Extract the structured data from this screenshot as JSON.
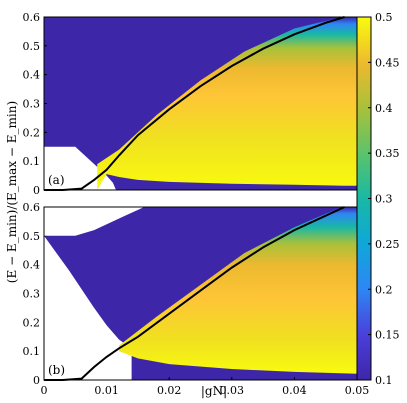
{
  "chart_data": [
    {
      "type": "heatmap",
      "panel_label": "(a)",
      "xlim": [
        0,
        0.05
      ],
      "ylim": [
        0,
        0.6
      ],
      "yticks": [
        "0",
        "0.1",
        "0.2",
        "0.3",
        "0.4",
        "0.5",
        "0.6"
      ],
      "xticks": [
        "0",
        "0.01",
        "0.02",
        "0.03",
        "0.04",
        "0.05"
      ],
      "background_color": "#3e26a8",
      "upper_boundary": {
        "x": [
          0,
          0.005,
          0.0065,
          0.0085,
          0.01,
          0.011,
          0.05
        ],
        "y": [
          0.15,
          0.15,
          0.12,
          0.08,
          0.05,
          0.025,
          0.0
        ]
      },
      "lower_boundary": {
        "x": [
          0.0085,
          0.01,
          0.012,
          0.015,
          0.02,
          0.03,
          0.04,
          0.048
        ],
        "y": [
          0.0,
          0.055,
          0.045,
          0.035,
          0.028,
          0.022,
          0.018,
          0.015
        ]
      },
      "black_curve": {
        "x": [
          0.0,
          0.003,
          0.006,
          0.008,
          0.01,
          0.012,
          0.015,
          0.02,
          0.025,
          0.03,
          0.035,
          0.04,
          0.045,
          0.048
        ],
        "y": [
          0.0,
          0.0,
          0.005,
          0.035,
          0.07,
          0.12,
          0.19,
          0.28,
          0.36,
          0.43,
          0.49,
          0.54,
          0.58,
          0.6
        ]
      }
    },
    {
      "type": "heatmap",
      "panel_label": "(b)",
      "xlim": [
        0,
        0.05
      ],
      "ylim": [
        0,
        0.6
      ],
      "yticks": [
        "0",
        "0.1",
        "0.2",
        "0.3",
        "0.4",
        "0.5",
        "0.6"
      ],
      "xticks": [
        "0",
        "0.01",
        "0.02",
        "0.03",
        "0.04",
        "0.05"
      ],
      "background_color": "#3e26a8",
      "top_boundary": {
        "x": [
          0,
          0.005,
          0.008,
          0.012,
          0.016,
          0.05
        ],
        "y": [
          0.5,
          0.5,
          0.52,
          0.56,
          0.6,
          0.6
        ]
      },
      "left_boundary": {
        "x": [
          0,
          0.004,
          0.008,
          0.01,
          0.012,
          0.014
        ],
        "y": [
          0.5,
          0.38,
          0.25,
          0.19,
          0.14,
          0.11
        ]
      },
      "lower_boundary": {
        "x": [
          0.012,
          0.015,
          0.02,
          0.03,
          0.04,
          0.05
        ],
        "y": [
          0.1,
          0.075,
          0.055,
          0.038,
          0.028,
          0.022
        ]
      },
      "black_curve": {
        "x": [
          0.0,
          0.003,
          0.006,
          0.008,
          0.01,
          0.012,
          0.015,
          0.02,
          0.025,
          0.03,
          0.035,
          0.04,
          0.045,
          0.048
        ],
        "y": [
          0.0,
          0.0,
          0.005,
          0.045,
          0.08,
          0.11,
          0.15,
          0.23,
          0.31,
          0.39,
          0.46,
          0.52,
          0.57,
          0.6
        ]
      }
    }
  ],
  "shared": {
    "ylabel": "(E − E_min)/(E_max − E_min)",
    "xlabel": "|gN|",
    "colorbar": {
      "ticks": [
        "0.5",
        "0.45",
        "0.4",
        "0.35",
        "0.3",
        "0.25",
        "0.2",
        "0.15",
        "0.1"
      ],
      "range": [
        0.1,
        0.5
      ],
      "colors": [
        "#3e26a8",
        "#4a3ed9",
        "#2e86f4",
        "#0fa8d6",
        "#19b8a4",
        "#59c36c",
        "#a9c13a",
        "#edb92f",
        "#fec537",
        "#f9fb0e"
      ]
    }
  }
}
